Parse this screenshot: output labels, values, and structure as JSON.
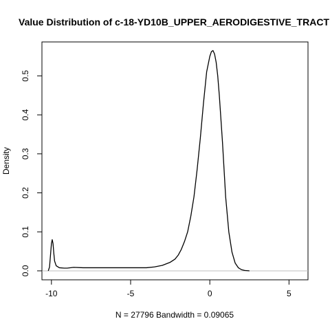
{
  "chart_data": {
    "type": "line",
    "title": "Value Distribution of c-18-YD10B_UPPER_AERODIGESTIVE_TRACT",
    "xlabel": "N = 27796   Bandwidth = 0.09065",
    "ylabel": "Density",
    "xlim": [
      -10.6,
      6.2
    ],
    "ylim": [
      -0.023,
      0.587
    ],
    "x_ticks": [
      -10,
      -5,
      0,
      5
    ],
    "x_tick_labels": [
      "-10",
      "-5",
      "0",
      "5"
    ],
    "y_ticks": [
      0.0,
      0.1,
      0.2,
      0.3,
      0.4,
      0.5
    ],
    "y_tick_labels": [
      "0.0",
      "0.1",
      "0.2",
      "0.3",
      "0.4",
      "0.5"
    ],
    "grid": false,
    "baseline": 0,
    "series": [
      {
        "x": [
          -10.2,
          -10.12,
          -10.05,
          -10.0,
          -9.95,
          -9.9,
          -9.85,
          -9.8,
          -9.7,
          -9.5,
          -9.2,
          -9.0,
          -8.6,
          -8.0,
          -7.0,
          -6.0,
          -5.0,
          -4.5,
          -4.0,
          -3.5,
          -3.0,
          -2.5,
          -2.2,
          -2.0,
          -1.8,
          -1.6,
          -1.4,
          -1.2,
          -1.0,
          -0.8,
          -0.6,
          -0.4,
          -0.2,
          0.0,
          0.1,
          0.2,
          0.3,
          0.4,
          0.5,
          0.6,
          0.8,
          1.0,
          1.2,
          1.4,
          1.6,
          1.8,
          2.0,
          2.2,
          2.4,
          2.5
        ],
        "y": [
          0.0,
          0.01,
          0.045,
          0.07,
          0.08,
          0.07,
          0.045,
          0.025,
          0.013,
          0.008,
          0.007,
          0.007,
          0.009,
          0.008,
          0.008,
          0.008,
          0.008,
          0.008,
          0.008,
          0.01,
          0.014,
          0.022,
          0.03,
          0.04,
          0.055,
          0.075,
          0.1,
          0.14,
          0.19,
          0.26,
          0.34,
          0.43,
          0.51,
          0.55,
          0.562,
          0.565,
          0.556,
          0.535,
          0.5,
          0.45,
          0.33,
          0.19,
          0.1,
          0.048,
          0.02,
          0.008,
          0.003,
          0.001,
          0.0003,
          0.0
        ]
      }
    ]
  }
}
